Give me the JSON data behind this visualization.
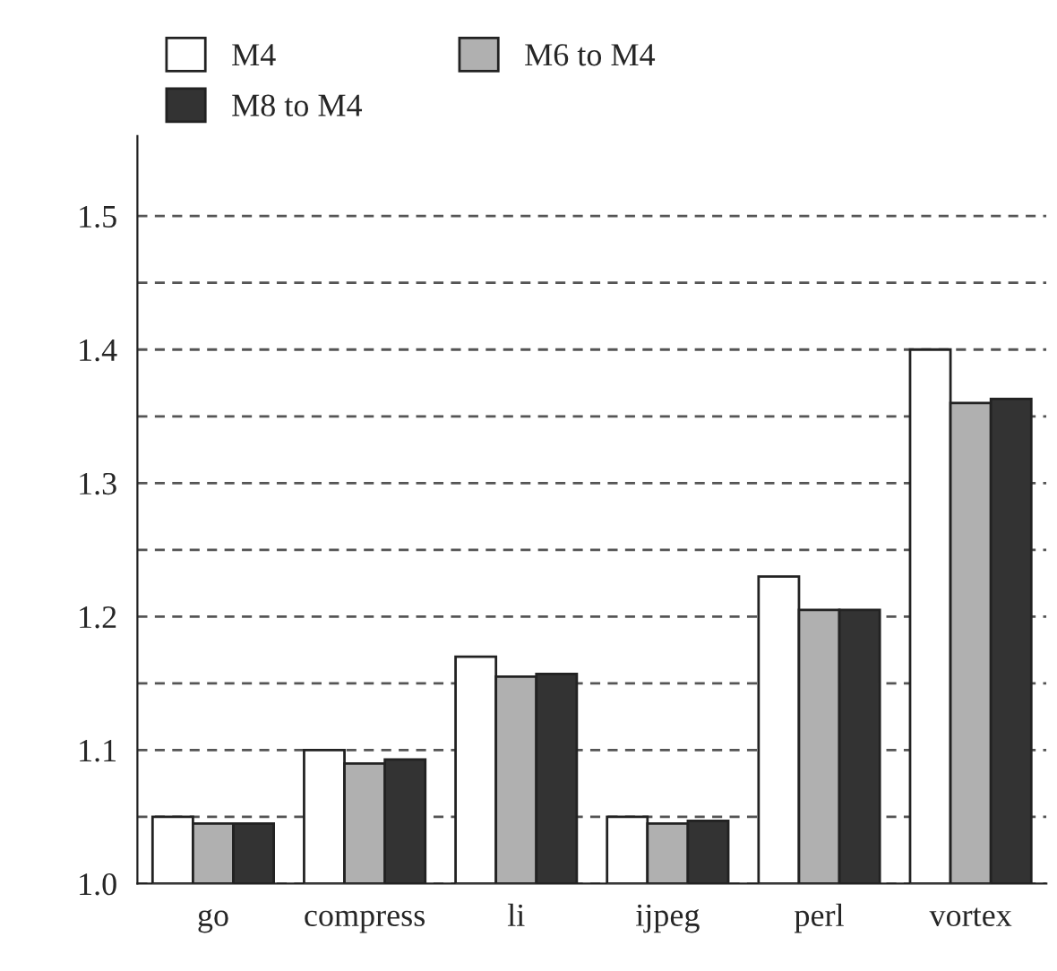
{
  "chart_data": {
    "type": "bar",
    "categories": [
      "go",
      "compress",
      "li",
      "ijpeg",
      "perl",
      "vortex"
    ],
    "series": [
      {
        "name": "M4",
        "color": "#ffffff",
        "values": [
          1.05,
          1.1,
          1.17,
          1.05,
          1.23,
          1.4
        ]
      },
      {
        "name": "M6 to M4",
        "color": "#b0b0b0",
        "values": [
          1.045,
          1.09,
          1.155,
          1.045,
          1.205,
          1.36
        ]
      },
      {
        "name": "M8 to M4",
        "color": "#333333",
        "values": [
          1.045,
          1.093,
          1.157,
          1.047,
          1.205,
          1.363
        ]
      }
    ],
    "ylim": [
      1.0,
      1.56
    ],
    "yticks": [
      {
        "value": 1.0,
        "label": "1.0"
      },
      {
        "value": 1.05,
        "label": null
      },
      1.1,
      {
        "value": 1.15,
        "label": null
      },
      1.2,
      {
        "value": 1.25,
        "label": null
      },
      1.3,
      {
        "value": 1.35,
        "label": null
      },
      1.4,
      {
        "value": 1.45,
        "label": null
      },
      1.5
    ],
    "grid": "y",
    "line_style": "dashed",
    "legend": "top left"
  }
}
